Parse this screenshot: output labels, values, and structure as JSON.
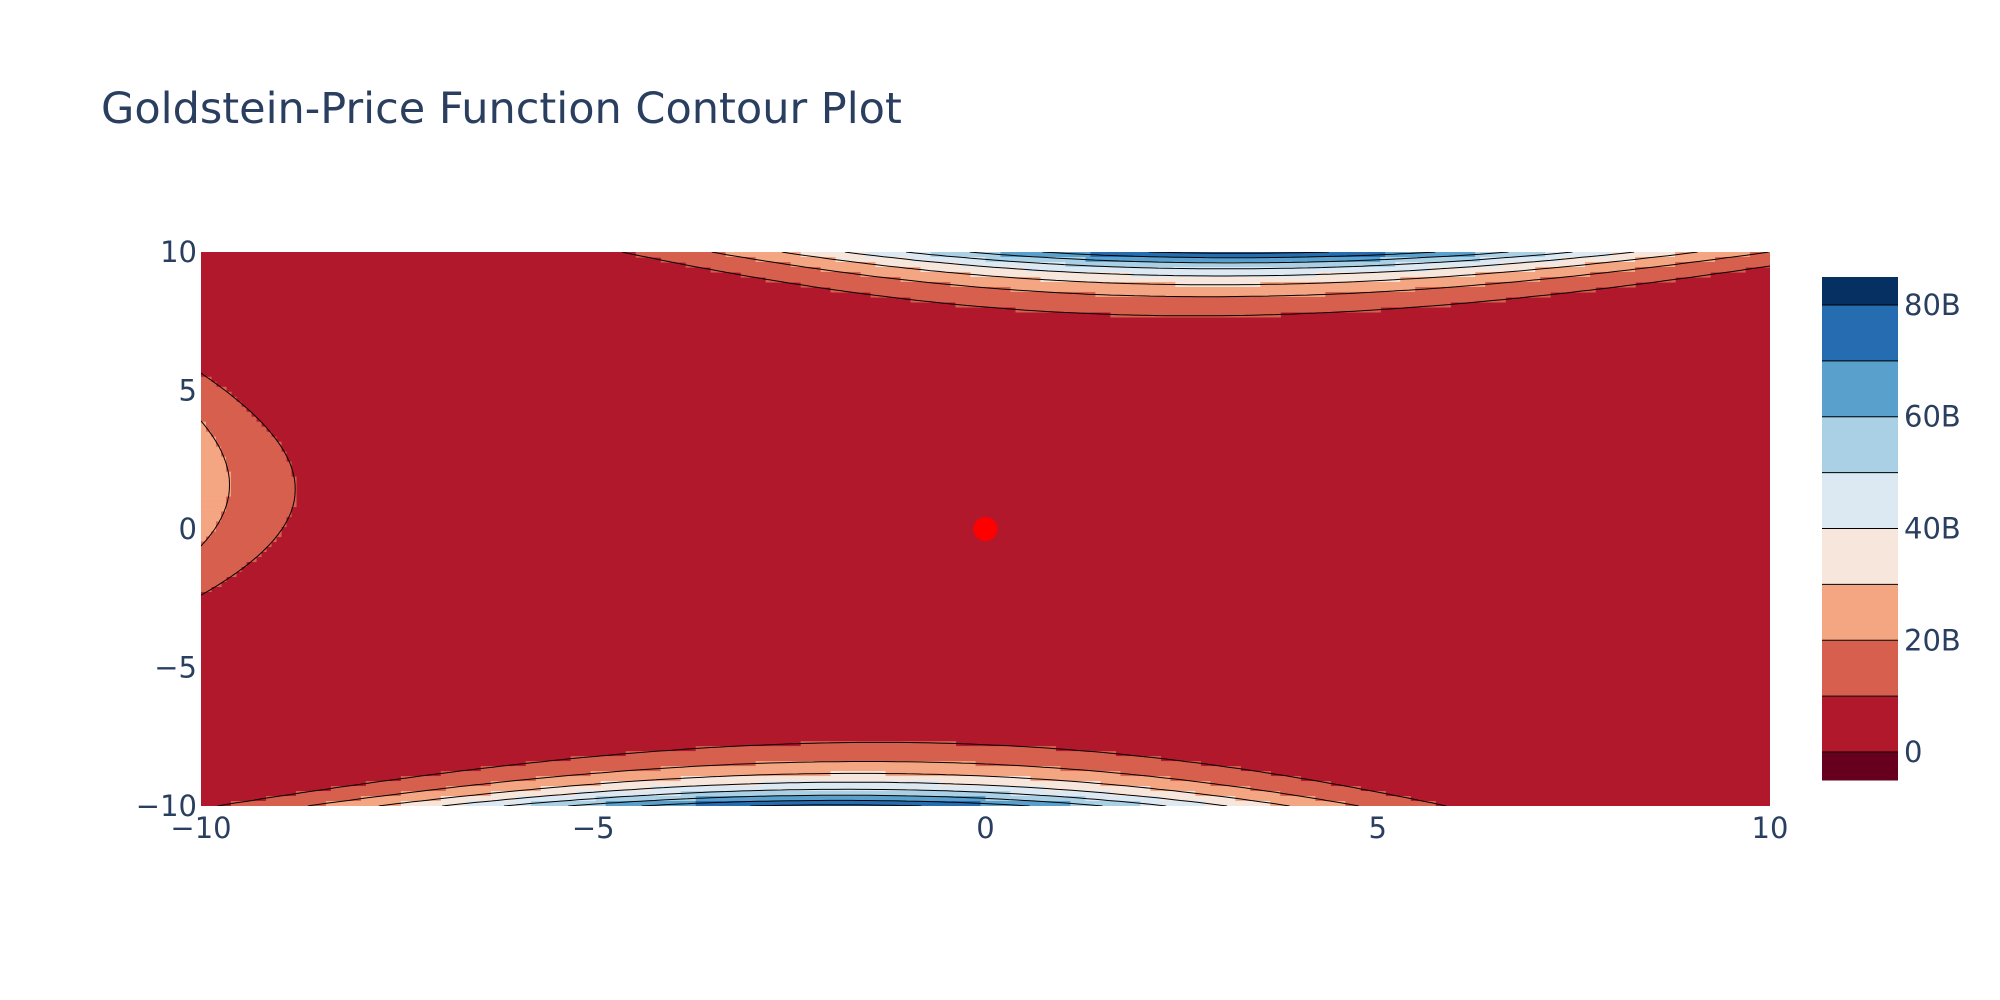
{
  "chart_data": {
    "type": "contour",
    "title": "Goldstein-Price Function Contour Plot",
    "xlabel": "",
    "ylabel": "",
    "xlim": [
      -10,
      10
    ],
    "ylim": [
      -10,
      10
    ],
    "x_ticks": [
      -10,
      -5,
      0,
      5,
      10
    ],
    "y_ticks": [
      -10,
      -5,
      0,
      5,
      10
    ],
    "x_tick_labels": [
      "−10",
      "−5",
      "0",
      "5",
      "10"
    ],
    "y_tick_labels": [
      "−10",
      "−5",
      "0",
      "5",
      "10"
    ],
    "contour_levels": [
      0,
      10000000000,
      20000000000,
      30000000000,
      40000000000,
      50000000000,
      60000000000,
      70000000000,
      80000000000
    ],
    "colorbar": {
      "range": [
        -5000000000,
        85000000000
      ],
      "ticks": [
        0,
        20000000000,
        40000000000,
        60000000000,
        80000000000
      ],
      "tick_labels": [
        "0",
        "20B",
        "40B",
        "60B",
        "80B"
      ],
      "colors": [
        "#67001f",
        "#b2182b",
        "#d6604d",
        "#f4a582",
        "#f7e6dc",
        "#dde9f2",
        "#a9d0e5",
        "#5aa0cc",
        "#266cb0",
        "#053061"
      ]
    },
    "marker": {
      "x": 0,
      "y": 0,
      "color": "#ff0000"
    },
    "grid": false,
    "legend": "none"
  }
}
